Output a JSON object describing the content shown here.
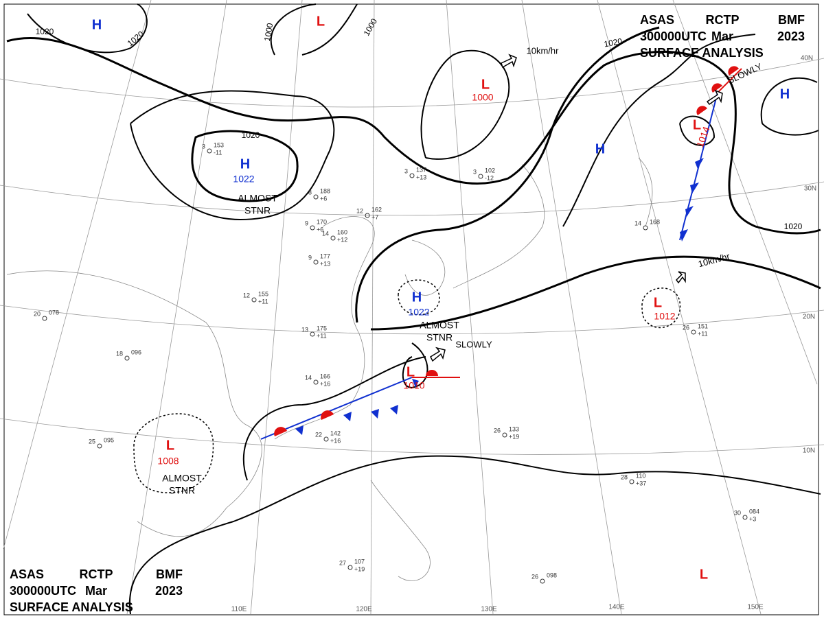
{
  "header_top": {
    "lines": [
      [
        "ASAS",
        "RCTP",
        "BMF"
      ],
      [
        "300000UTC",
        "Mar",
        "2023"
      ],
      [
        "SURFACE ANALYSIS"
      ]
    ]
  },
  "header_bottom": {
    "lines": [
      [
        "ASAS",
        "RCTP",
        "BMF"
      ],
      [
        "300000UTC",
        "Mar",
        "2023"
      ],
      [
        "SURFACE ANALYSIS"
      ]
    ]
  },
  "centers": [
    {
      "mark": "H",
      "pressure": "1022",
      "note": [
        "ALMOST",
        "STNR"
      ]
    },
    {
      "mark": "H",
      "pressure": "1022",
      "note": [
        "ALMOST",
        "STNR"
      ]
    },
    {
      "mark": "L",
      "pressure": "1008",
      "note": [
        "ALMOST",
        "STNR"
      ]
    },
    {
      "mark": "L",
      "pressure": "1000"
    },
    {
      "mark": "L",
      "pressure": "1010"
    },
    {
      "mark": "L",
      "pressure": "1012"
    },
    {
      "mark": "L",
      "pressure": "1014"
    },
    {
      "mark": "H"
    },
    {
      "mark": "L"
    },
    {
      "mark": "H"
    },
    {
      "mark": "H"
    },
    {
      "mark": "L"
    }
  ],
  "motions": [
    "10km/hr",
    "SLOWLY",
    "10km/hr",
    "SLOWLY"
  ],
  "isobar_labels": [
    "1020",
    "1020",
    "1020",
    "1020",
    "1020",
    "1000",
    "1000"
  ],
  "latitudes": [
    "40N",
    "30N",
    "20N",
    "10N"
  ],
  "longitudes": [
    "110E",
    "120E",
    "130E",
    "140E",
    "150E"
  ],
  "stations": [
    {
      "temp": "3",
      "pressure": "153",
      "tendency": "-11"
    },
    {
      "temp": "8",
      "pressure": "188",
      "tendency": "+6"
    },
    {
      "temp": "9",
      "pressure": "170",
      "tendency": "+6"
    },
    {
      "temp": "12",
      "pressure": "162",
      "tendency": "+7"
    },
    {
      "temp": "14",
      "pressure": "160",
      "tendency": "+12"
    },
    {
      "temp": "9",
      "pressure": "177",
      "tendency": "+13"
    },
    {
      "temp": "3",
      "pressure": "137",
      "tendency": "+13"
    },
    {
      "temp": "3",
      "pressure": "102",
      "tendency": "-12"
    },
    {
      "temp": "12",
      "pressure": "155",
      "tendency": "+11"
    },
    {
      "temp": "13",
      "pressure": "175",
      "tendency": "+11"
    },
    {
      "temp": "14",
      "pressure": "166",
      "tendency": "+16"
    },
    {
      "temp": "22",
      "pressure": "142",
      "tendency": "+16"
    },
    {
      "temp": "26",
      "pressure": "133",
      "tendency": "+19"
    },
    {
      "temp": "28",
      "pressure": "110",
      "tendency": "+37"
    },
    {
      "temp": "27",
      "pressure": "107",
      "tendency": "+19"
    },
    {
      "temp": "26",
      "pressure": "098"
    },
    {
      "temp": "25",
      "pressure": "095"
    },
    {
      "temp": "20",
      "pressure": "078"
    },
    {
      "temp": "18",
      "pressure": "096"
    },
    {
      "temp": "26",
      "pressure": "151",
      "tendency": "+11"
    },
    {
      "temp": "14",
      "pressure": "168"
    },
    {
      "temp": "30",
      "pressure": "084",
      "tendency": "+3"
    }
  ]
}
